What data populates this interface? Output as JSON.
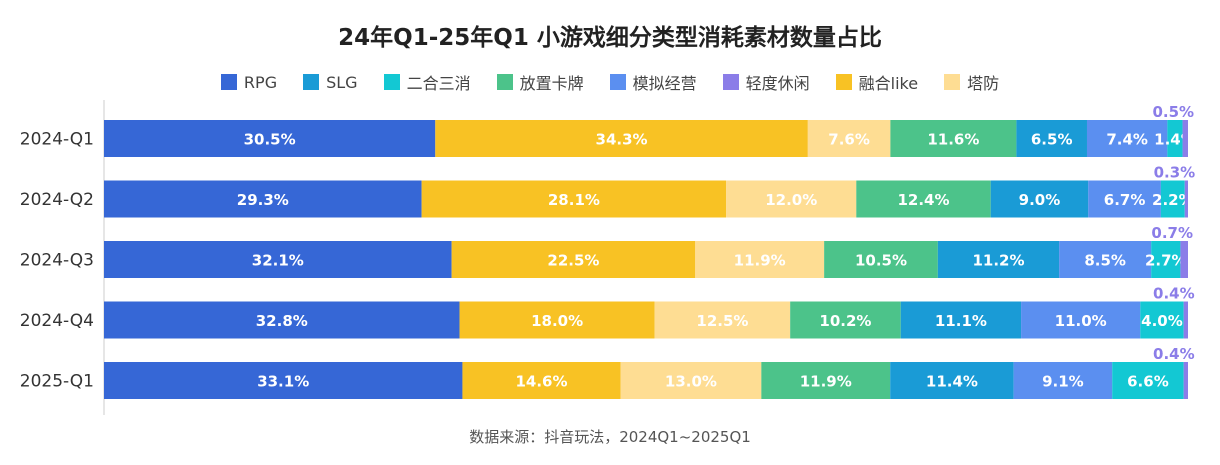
{
  "chart_data": {
    "type": "bar",
    "orientation": "horizontal",
    "stacked": true,
    "percent_stacked": true,
    "title": "24年Q1-25年Q1 小游戏细分类型消耗素材数量占比",
    "source": "数据来源：抖音玩法，2024Q1~2025Q1",
    "categories": [
      "2024-Q1",
      "2024-Q2",
      "2024-Q3",
      "2024-Q4",
      "2025-Q1"
    ],
    "legend_order": [
      "RPG",
      "SLG",
      "二合三消",
      "放置卡牌",
      "模拟经营",
      "轻度休闲",
      "融合like",
      "塔防"
    ],
    "legend_position": "top",
    "grid": false,
    "series": [
      {
        "name": "RPG",
        "color": "#3667d6",
        "label_color": "#ffffff",
        "values": [
          30.5,
          29.3,
          32.1,
          32.8,
          33.1
        ]
      },
      {
        "name": "融合like",
        "color": "#f8c224",
        "label_color": "#ffffff",
        "values": [
          34.3,
          28.1,
          22.5,
          18.0,
          14.6
        ]
      },
      {
        "name": "塔防",
        "color": "#fedd93",
        "label_color": "#ffffff",
        "values": [
          7.6,
          12.0,
          11.9,
          12.5,
          13.0
        ]
      },
      {
        "name": "放置卡牌",
        "color": "#4cc38a",
        "label_color": "#ffffff",
        "values": [
          11.6,
          12.4,
          10.5,
          10.2,
          11.9
        ]
      },
      {
        "name": "SLG",
        "color": "#1a9bd6",
        "label_color": "#ffffff",
        "values": [
          6.5,
          9.0,
          11.2,
          11.1,
          11.4
        ]
      },
      {
        "name": "模拟经营",
        "color": "#5b8ff0",
        "label_color": "#ffffff",
        "values": [
          7.4,
          6.7,
          8.5,
          11.0,
          9.1
        ]
      },
      {
        "name": "二合三消",
        "color": "#13c8d3",
        "label_color": "#ffffff",
        "values": [
          1.4,
          2.2,
          2.7,
          4.0,
          6.6
        ]
      },
      {
        "name": "轻度休闲",
        "color": "#8b7de8",
        "label_color": "#8b7de8",
        "label_outside": true,
        "values": [
          0.5,
          0.3,
          0.7,
          0.4,
          0.4
        ]
      }
    ]
  }
}
